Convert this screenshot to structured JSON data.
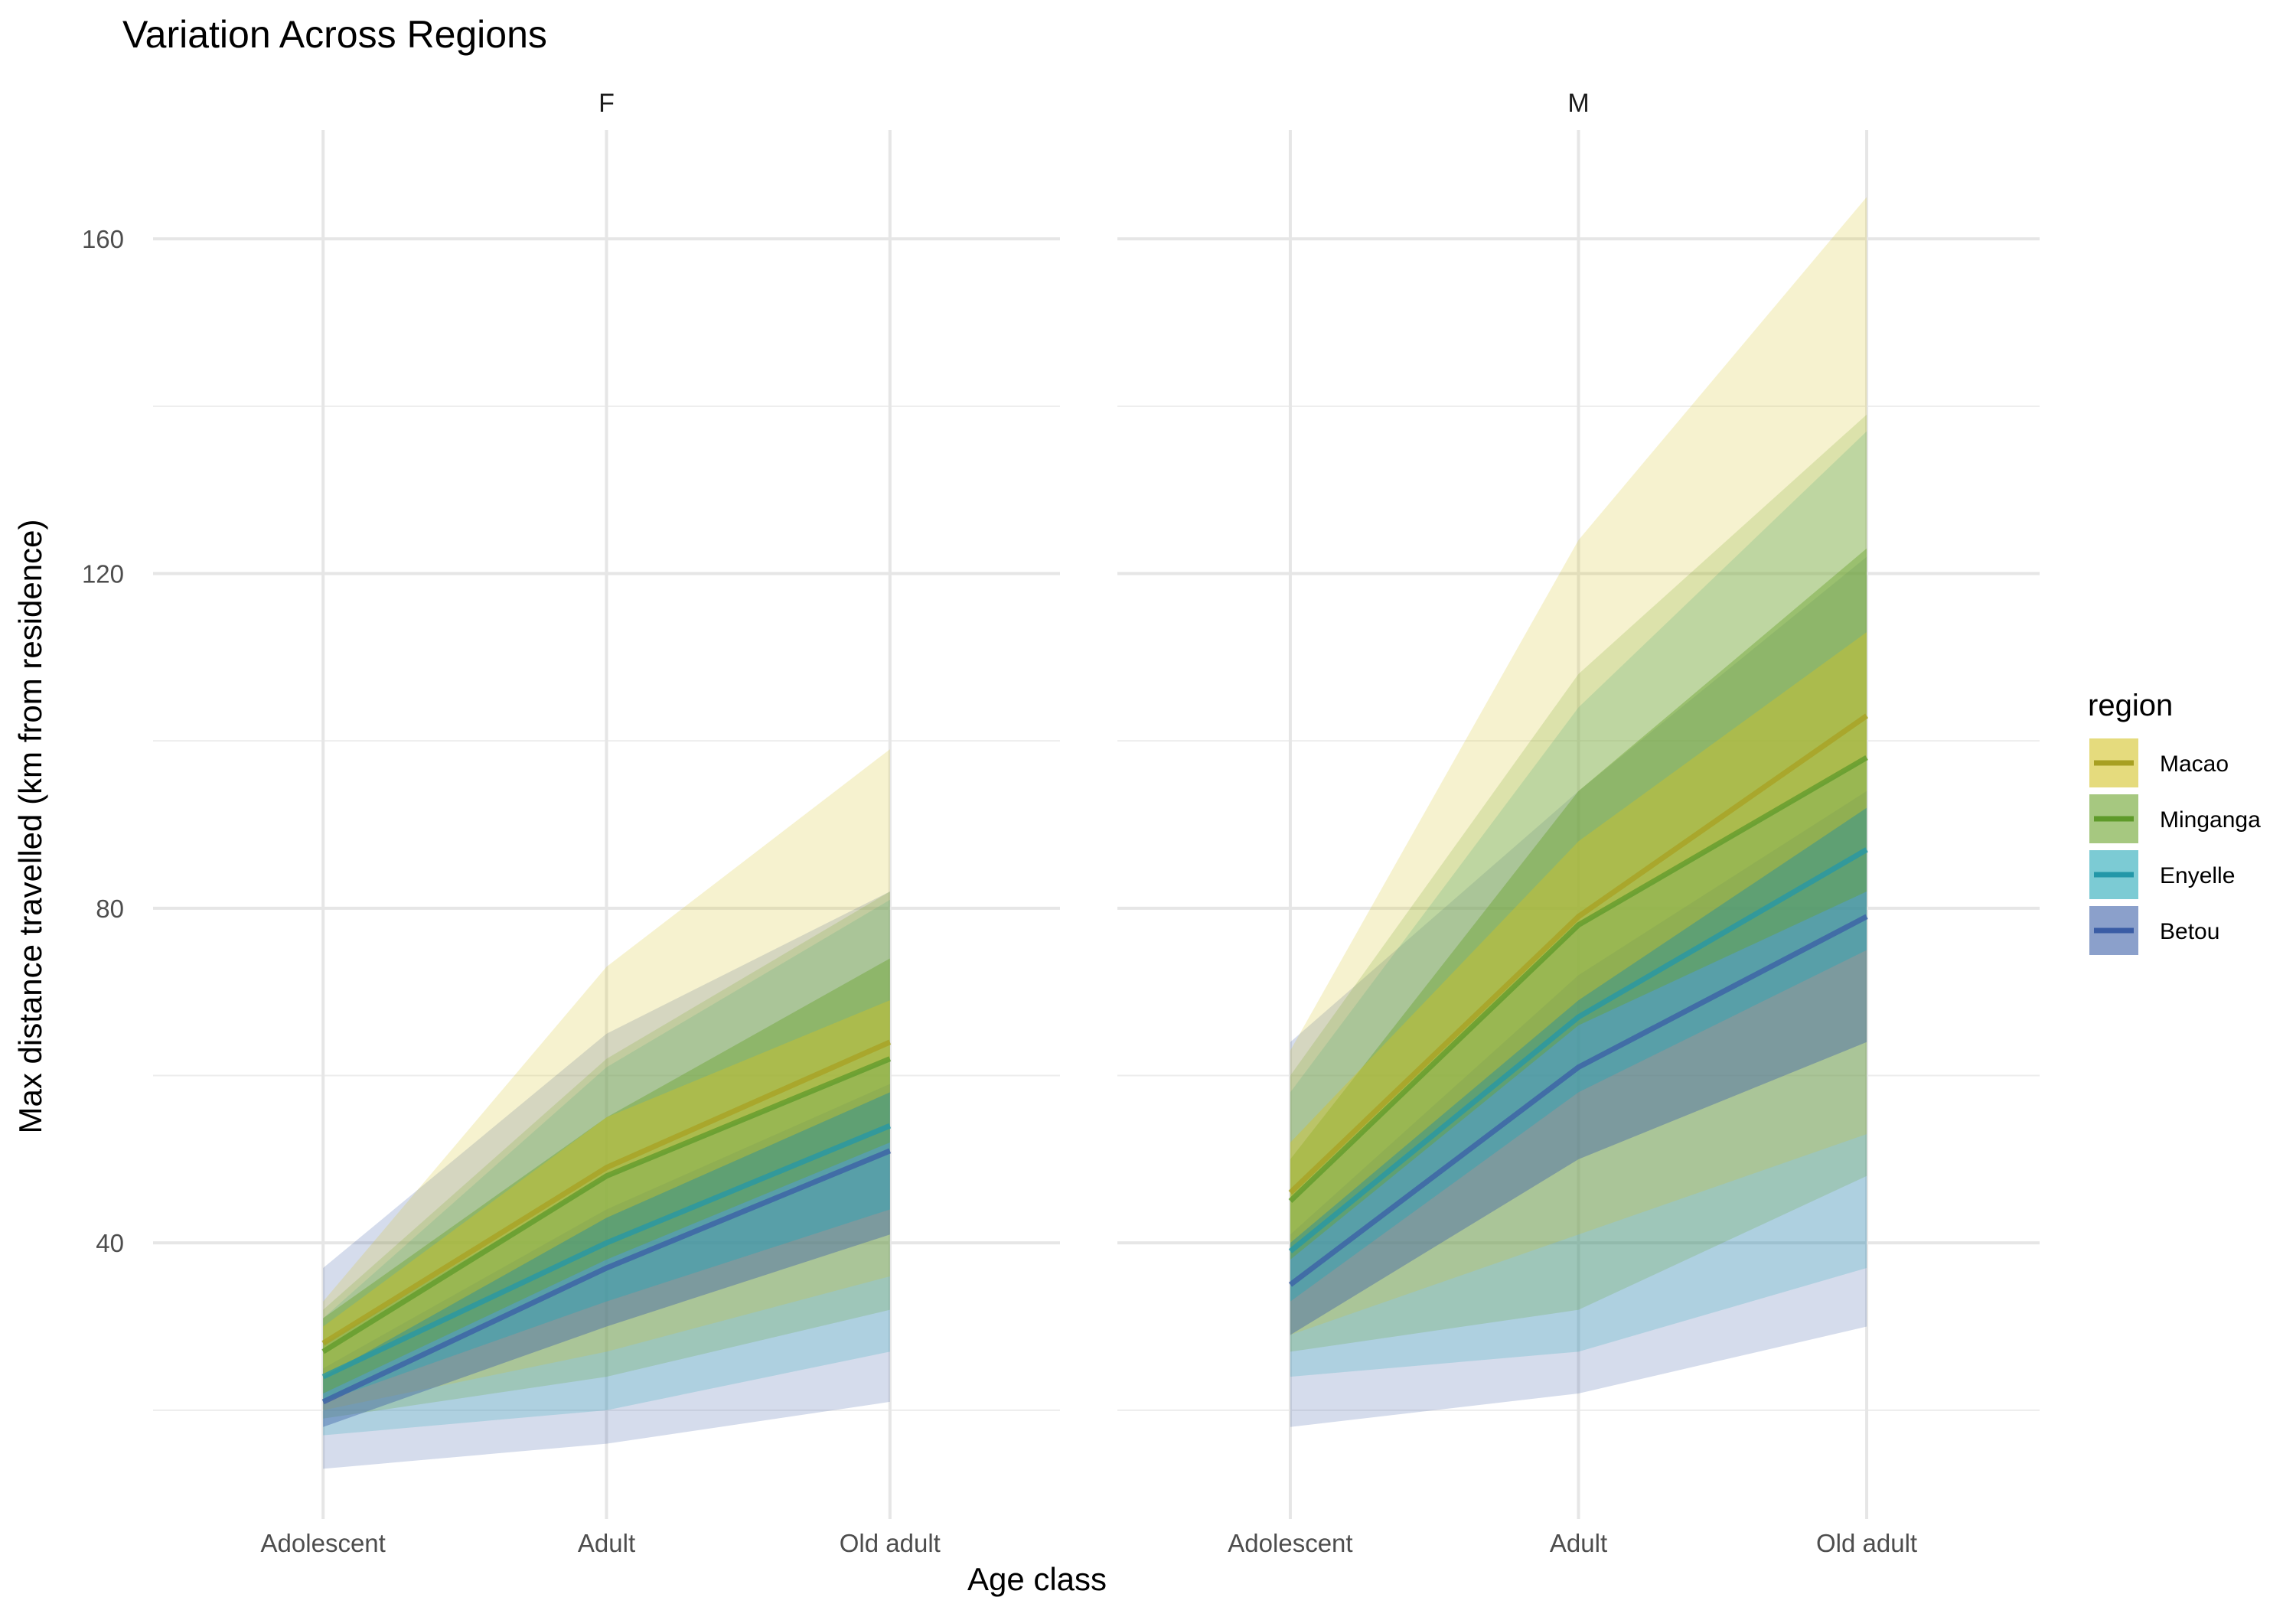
{
  "chart_data": {
    "type": "area",
    "title": "Variation Across Regions",
    "xlabel": "Age class",
    "ylabel": "Max distance travelled (km from residence)",
    "categories": [
      "Adolescent",
      "Adult",
      "Old adult"
    ],
    "ylim": [
      7,
      173
    ],
    "yticks": [
      40,
      80,
      120,
      160
    ],
    "grid": true,
    "legend": {
      "title": "region",
      "position": "right"
    },
    "colors": {
      "Macao": "#d4c326",
      "Minganga": "#6aa32c",
      "Enyelle": "#25a8b8",
      "Betou": "#3e60a8"
    },
    "line_colors": {
      "Macao": "#a8a022",
      "Minganga": "#5e9a2a",
      "Enyelle": "#2397a8",
      "Betou": "#3a5ca5"
    },
    "panels": [
      {
        "facet": "F",
        "series": [
          {
            "name": "Macao",
            "mean": [
              28,
              49,
              64
            ],
            "inner_lo": [
              24,
              43,
              58
            ],
            "inner_hi": [
              30,
              55,
              69
            ],
            "outer_lo": [
              20,
              27,
              36
            ],
            "outer_hi": [
              33,
              73,
              99
            ]
          },
          {
            "name": "Minganga",
            "mean": [
              27,
              48,
              62
            ],
            "inner_lo": [
              22,
              38,
              52
            ],
            "inner_hi": [
              31,
              55,
              74
            ],
            "outer_lo": [
              19,
              24,
              32
            ],
            "outer_hi": [
              32,
              62,
              82
            ]
          },
          {
            "name": "Enyelle",
            "mean": [
              24,
              40,
              54
            ],
            "inner_lo": [
              21,
              33,
              44
            ],
            "inner_hi": [
              28,
              48,
              62
            ],
            "outer_lo": [
              17,
              20,
              27
            ],
            "outer_hi": [
              31,
              61,
              81
            ]
          },
          {
            "name": "Betou",
            "mean": [
              21,
              37,
              51
            ],
            "inner_lo": [
              18,
              30,
              41
            ],
            "inner_hi": [
              25,
              44,
              59
            ],
            "outer_lo": [
              13,
              16,
              21
            ],
            "outer_hi": [
              37,
              65,
              82
            ]
          }
        ]
      },
      {
        "facet": "M",
        "series": [
          {
            "name": "Macao",
            "mean": [
              46,
              79,
              103
            ],
            "inner_lo": [
              40,
              69,
              92
            ],
            "inner_hi": [
              52,
              88,
              113
            ],
            "outer_lo": [
              29,
              41,
              53
            ],
            "outer_hi": [
              63,
              124,
              165
            ]
          },
          {
            "name": "Minganga",
            "mean": [
              45,
              78,
              98
            ],
            "inner_lo": [
              38,
              66,
              82
            ],
            "inner_hi": [
              50,
              94,
              123
            ],
            "outer_lo": [
              27,
              32,
              48
            ],
            "outer_hi": [
              60,
              108,
              139
            ]
          },
          {
            "name": "Enyelle",
            "mean": [
              39,
              67,
              87
            ],
            "inner_lo": [
              33,
              58,
              75
            ],
            "inner_hi": [
              45,
              78,
              98
            ],
            "outer_lo": [
              24,
              27,
              37
            ],
            "outer_hi": [
              58,
              104,
              137
            ]
          },
          {
            "name": "Betou",
            "mean": [
              35,
              61,
              79
            ],
            "inner_lo": [
              29,
              50,
              64
            ],
            "inner_hi": [
              41,
              72,
              94
            ],
            "outer_lo": [
              18,
              22,
              30
            ],
            "outer_hi": [
              64,
              94,
              122
            ]
          }
        ]
      }
    ]
  }
}
